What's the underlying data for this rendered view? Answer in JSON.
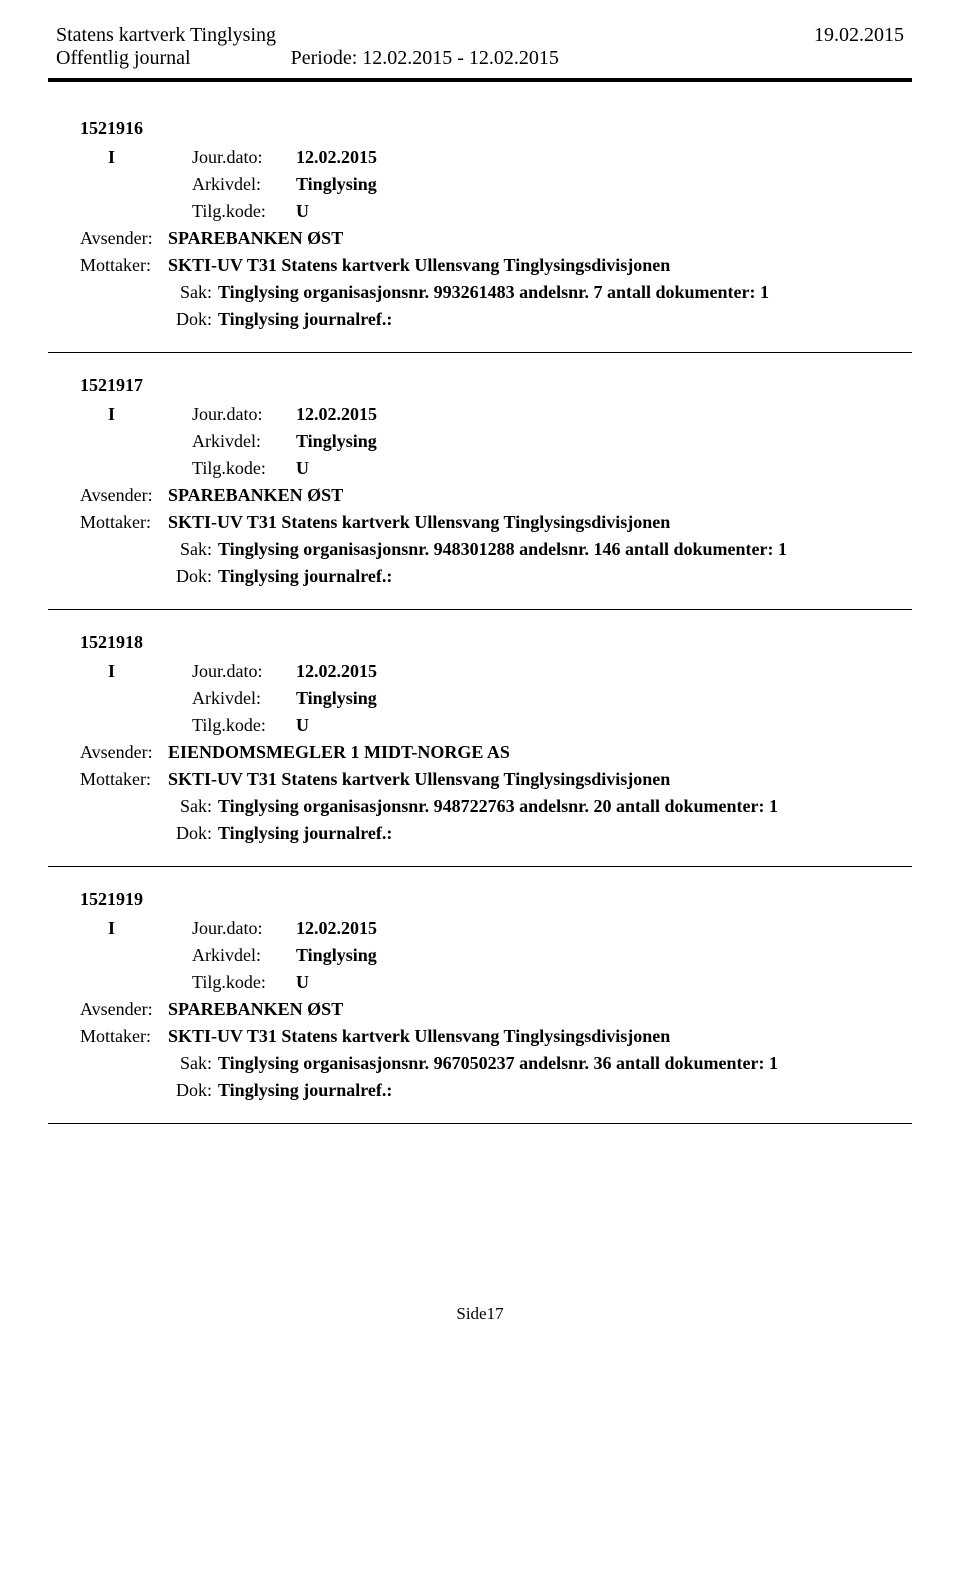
{
  "header": {
    "org": "Statens kartverk Tinglysing",
    "date": "19.02.2015",
    "journal_label": "Offentlig journal",
    "period_label": "Periode: 12.02.2015 - 12.02.2015"
  },
  "labels": {
    "jour_dato": "Jour.dato:",
    "arkivdel": "Arkivdel:",
    "tilg_kode": "Tilg.kode:",
    "avsender": "Avsender:",
    "mottaker": "Mottaker:",
    "sak": "Sak:",
    "dok": "Dok:"
  },
  "entries": [
    {
      "id": "1521916",
      "io": "I",
      "jour_dato": "12.02.2015",
      "arkivdel": "Tinglysing",
      "tilg_kode": "U",
      "avsender": "SPAREBANKEN ØST",
      "mottaker": "SKTI-UV T31 Statens kartverk Ullensvang Tinglysingsdivisjonen",
      "sak": "Tinglysing organisasjonsnr. 993261483 andelsnr. 7 antall dokumenter: 1",
      "dok": "Tinglysing journalref.:"
    },
    {
      "id": "1521917",
      "io": "I",
      "jour_dato": "12.02.2015",
      "arkivdel": "Tinglysing",
      "tilg_kode": "U",
      "avsender": "SPAREBANKEN ØST",
      "mottaker": "SKTI-UV T31 Statens kartverk Ullensvang Tinglysingsdivisjonen",
      "sak": "Tinglysing organisasjonsnr. 948301288 andelsnr. 146 antall dokumenter: 1",
      "dok": "Tinglysing journalref.:"
    },
    {
      "id": "1521918",
      "io": "I",
      "jour_dato": "12.02.2015",
      "arkivdel": "Tinglysing",
      "tilg_kode": "U",
      "avsender": "EIENDOMSMEGLER 1 MIDT-NORGE AS",
      "mottaker": "SKTI-UV T31 Statens kartverk Ullensvang Tinglysingsdivisjonen",
      "sak": "Tinglysing organisasjonsnr. 948722763 andelsnr. 20 antall dokumenter: 1",
      "dok": "Tinglysing journalref.:"
    },
    {
      "id": "1521919",
      "io": "I",
      "jour_dato": "12.02.2015",
      "arkivdel": "Tinglysing",
      "tilg_kode": "U",
      "avsender": "SPAREBANKEN ØST",
      "mottaker": "SKTI-UV T31 Statens kartverk Ullensvang Tinglysingsdivisjonen",
      "sak": "Tinglysing organisasjonsnr. 967050237 andelsnr. 36 antall dokumenter: 1",
      "dok": "Tinglysing journalref.:"
    }
  ],
  "footer": {
    "page": "Side17"
  }
}
